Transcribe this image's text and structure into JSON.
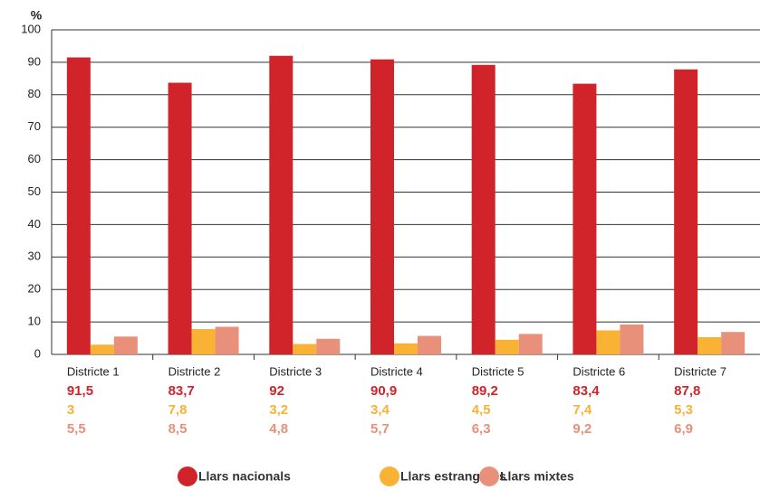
{
  "chart_data": {
    "type": "bar",
    "y_label": "%",
    "categories": [
      "Districte 1",
      "Districte 2",
      "Districte 3",
      "Districte 4",
      "Districte 5",
      "Districte 6",
      "Districte 7"
    ],
    "series": [
      {
        "name": "Llars nacionals",
        "color": "#d1232a",
        "values": [
          91.5,
          83.7,
          92,
          90.9,
          89.2,
          83.4,
          87.8
        ],
        "value_labels": [
          "91,5",
          "83,7",
          "92",
          "90,9",
          "89,2",
          "83,4",
          "87,8"
        ]
      },
      {
        "name": "Llars estrangeres",
        "color": "#f9b234",
        "values": [
          3,
          7.8,
          3.2,
          3.4,
          4.5,
          7.4,
          5.3
        ],
        "value_labels": [
          "3",
          "7,8",
          "3,2",
          "3,4",
          "4,5",
          "7,4",
          "5,3"
        ]
      },
      {
        "name": "Llars mixtes",
        "color": "#e8907a",
        "values": [
          5.5,
          8.5,
          4.8,
          5.7,
          6.3,
          9.2,
          6.9
        ],
        "value_labels": [
          "5,5",
          "8,5",
          "4,8",
          "5,7",
          "6,3",
          "9,2",
          "6,9"
        ]
      }
    ],
    "ylim": [
      0,
      100
    ],
    "yticks": [
      0,
      10,
      20,
      30,
      40,
      50,
      60,
      70,
      80,
      90,
      100
    ],
    "grid": true
  }
}
